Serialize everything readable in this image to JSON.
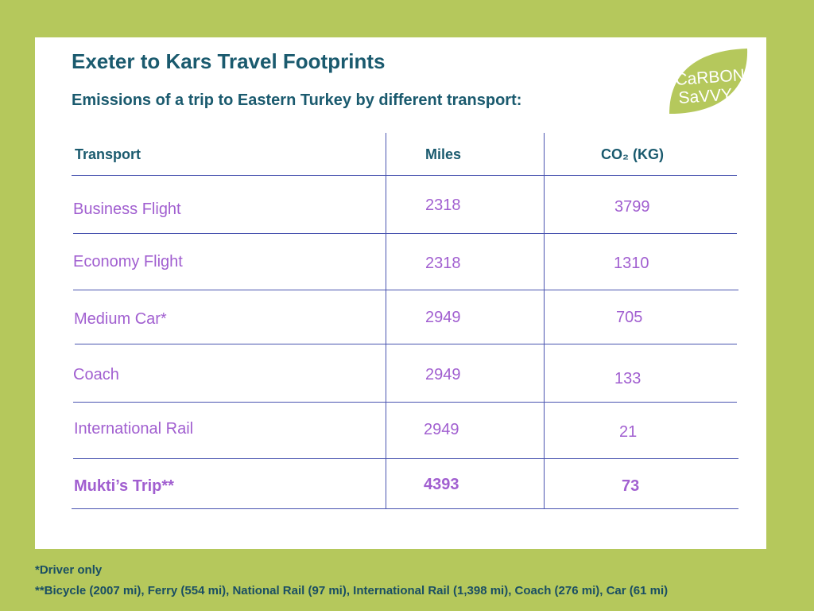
{
  "header": {
    "title": "Exeter to Kars Travel Footprints",
    "subtitle": "Emissions of a trip to Eastern Turkey by different transport:"
  },
  "logo": {
    "line1": "CaRBON",
    "line2": "SaVVY",
    "icon": "leaf-icon",
    "color": "#b5c85c"
  },
  "table": {
    "columns": [
      "Transport",
      "Miles",
      "CO₂ (KG)"
    ],
    "rows": [
      {
        "transport": "Business Flight",
        "miles": "2318",
        "co2": "3799"
      },
      {
        "transport": "Economy Flight",
        "miles": "2318",
        "co2": "1310"
      },
      {
        "transport": "Medium Car*",
        "miles": "2949",
        "co2": "705"
      },
      {
        "transport": "Coach",
        "miles": "2949",
        "co2": "133"
      },
      {
        "transport": "International Rail",
        "miles": "2949",
        "co2": "21"
      },
      {
        "transport": "Mukti’s Trip**",
        "miles": "4393",
        "co2": "73"
      }
    ]
  },
  "footnotes": {
    "note1": "*Driver only",
    "note2": "**Bicycle (2007 mi), Ferry (554 mi), National Rail (97 mi), International Rail (1,398 mi), Coach (276 mi), Car (61 mi)"
  },
  "colors": {
    "background": "#b5c85c",
    "heading": "#1a5a6e",
    "cell_text": "#a15fd0",
    "rule": "#4a55b0"
  }
}
